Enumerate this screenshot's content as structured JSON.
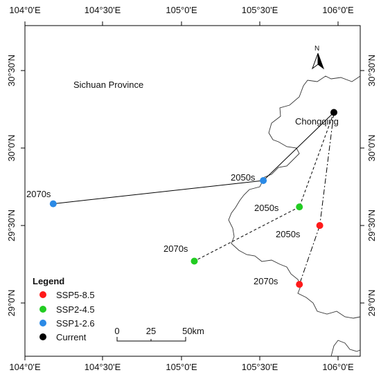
{
  "map": {
    "region_label": "Sichuan Province",
    "city_label": "Chongqing",
    "north_label": "N",
    "x_ticks": [
      "104°0'E",
      "104°30'E",
      "105°0'E",
      "105°30'E",
      "106°0'E"
    ],
    "y_ticks": [
      "30°30'N",
      "30°0'N",
      "29°30'N",
      "29°0'N"
    ],
    "points": [
      {
        "id": "current",
        "label": "",
        "scenario": "Current",
        "lon": 105.97,
        "lat": 30.23
      },
      {
        "id": "ssp126-2050",
        "label": "2050s",
        "scenario": "SSP1-2.6",
        "lon": 105.52,
        "lat": 29.79
      },
      {
        "id": "ssp126-2070",
        "label": "2070s",
        "scenario": "SSP1-2.6",
        "lon": 104.18,
        "lat": 29.64
      },
      {
        "id": "ssp245-2050",
        "label": "2050s",
        "scenario": "SSP2-4.5",
        "lon": 105.75,
        "lat": 29.62
      },
      {
        "id": "ssp245-2070",
        "label": "2070s",
        "scenario": "SSP2-4.5",
        "lon": 105.08,
        "lat": 29.27
      },
      {
        "id": "ssp585-2050",
        "label": "2050s",
        "scenario": "SSP5-8.5",
        "lon": 105.88,
        "lat": 29.5
      },
      {
        "id": "ssp585-2070",
        "label": "2070s",
        "scenario": "SSP5-8.5",
        "lon": 105.75,
        "lat": 29.12
      }
    ],
    "legend": {
      "title": "Legend",
      "items": [
        {
          "label": "SSP5-8.5",
          "color": "#ff1a1a"
        },
        {
          "label": "SSP2-4.5",
          "color": "#22cc22"
        },
        {
          "label": "SSP1-2.6",
          "color": "#2b8ae6"
        },
        {
          "label": "Current",
          "color": "#000000"
        }
      ]
    },
    "scale_bar": {
      "labels": [
        "0",
        "25",
        "50km"
      ]
    }
  }
}
